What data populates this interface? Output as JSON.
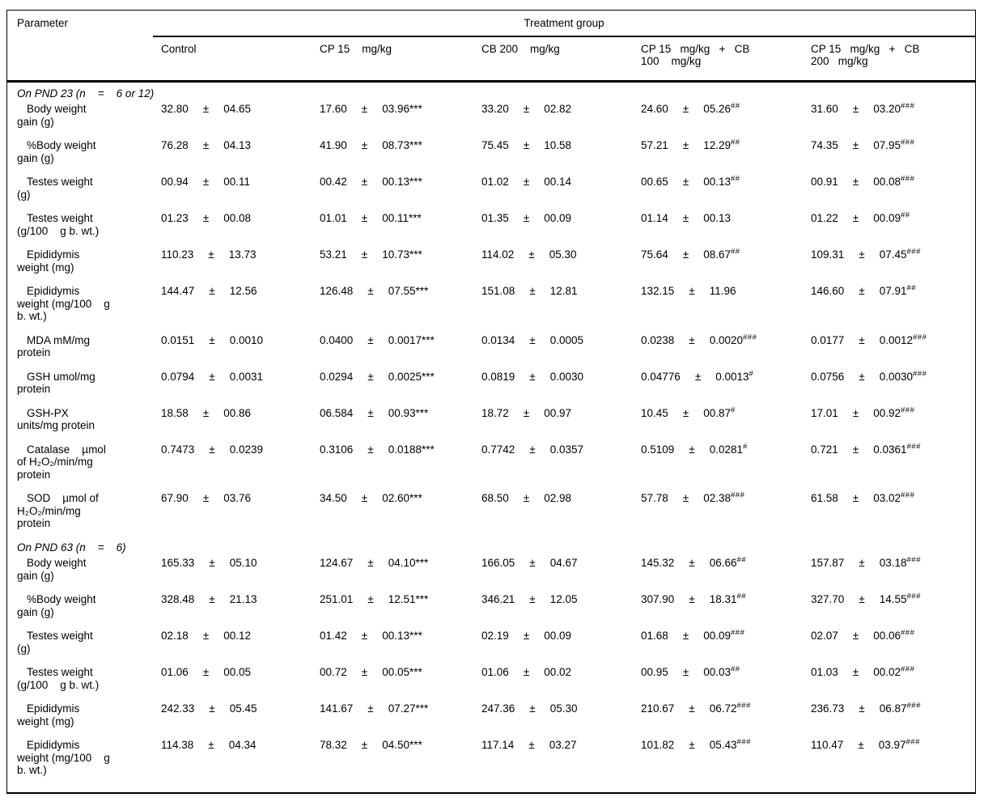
{
  "table": {
    "param_header": "Parameter",
    "group_header": "Treatment group",
    "pm": "±",
    "columns": [
      "Control",
      "CP 15    mg/kg",
      "CB 200    mg/kg",
      "CP 15   mg/kg   +   CB\n100    mg/kg",
      "CP 15   mg/kg   +   CB\n200   mg/kg"
    ],
    "sections": [
      {
        "title": "On PND 23 (n    =    6 or 12)",
        "rows": [
          {
            "label": "Body weight\ngain (g)",
            "cells": [
              [
                "32.80",
                "04.65",
                ""
              ],
              [
                "17.60",
                "03.96",
                "***"
              ],
              [
                "33.20",
                "02.82",
                ""
              ],
              [
                "24.60",
                "05.26",
                "##"
              ],
              [
                "31.60",
                "03.20",
                "###"
              ]
            ]
          },
          {
            "label": "%Body weight\ngain (g)",
            "cells": [
              [
                "76.28",
                "04.13",
                ""
              ],
              [
                "41.90",
                "08.73",
                "***"
              ],
              [
                "75.45",
                "10.58",
                ""
              ],
              [
                "57.21",
                "12.29",
                "##"
              ],
              [
                "74.35",
                "07.95",
                "###"
              ]
            ]
          },
          {
            "label": "Testes weight\n(g)",
            "cells": [
              [
                "00.94",
                "00.11",
                ""
              ],
              [
                "00.42",
                "00.13",
                "***"
              ],
              [
                "01.02",
                "00.14",
                ""
              ],
              [
                "00.65",
                "00.13",
                "##"
              ],
              [
                "00.91",
                "00.08",
                "###"
              ]
            ]
          },
          {
            "label": "Testes weight\n(g/100    g b. wt.)",
            "cells": [
              [
                "01.23",
                "00.08",
                ""
              ],
              [
                "01.01",
                "00.11",
                "***"
              ],
              [
                "01.35",
                "00.09",
                ""
              ],
              [
                "01.14",
                "00.13",
                ""
              ],
              [
                "01.22",
                "00.09",
                "##"
              ]
            ]
          },
          {
            "label": "Epididymis\nweight (mg)",
            "cells": [
              [
                "110.23",
                "13.73",
                ""
              ],
              [
                "53.21",
                "10.73",
                "***"
              ],
              [
                "114.02",
                "05.30",
                ""
              ],
              [
                "75.64",
                "08.67",
                "##"
              ],
              [
                "109.31",
                "07.45",
                "###"
              ]
            ]
          },
          {
            "label": "Epididymis\nweight (mg/100    g\nb. wt.)",
            "cells": [
              [
                "144.47",
                "12.56",
                ""
              ],
              [
                "126.48",
                "07.55",
                "***"
              ],
              [
                "151.08",
                "12.81",
                ""
              ],
              [
                "132.15",
                "11.96",
                ""
              ],
              [
                "146.60",
                "07.91",
                "##"
              ]
            ]
          },
          {
            "label": "MDA mM/mg\nprotein",
            "cells": [
              [
                "0.0151",
                "0.0010",
                ""
              ],
              [
                "0.0400",
                "0.0017",
                "***"
              ],
              [
                "0.0134",
                "0.0005",
                ""
              ],
              [
                "0.0238",
                "0.0020",
                "###"
              ],
              [
                "0.0177",
                "0.0012",
                "###"
              ]
            ]
          },
          {
            "label": "GSH umol/mg\nprotein",
            "cells": [
              [
                "0.0794",
                "0.0031",
                ""
              ],
              [
                "0.0294",
                "0.0025",
                "***"
              ],
              [
                "0.0819",
                "0.0030",
                ""
              ],
              [
                "0.04776",
                "0.0013",
                "#"
              ],
              [
                "0.0756",
                "0.0030",
                "###"
              ]
            ]
          },
          {
            "label": "GSH-PX\nunits/mg protein",
            "cells": [
              [
                "18.58",
                "00.86",
                ""
              ],
              [
                "06.584",
                "00.93",
                "***"
              ],
              [
                "18.72",
                "00.97",
                ""
              ],
              [
                "10.45",
                "00.87",
                "#"
              ],
              [
                "17.01",
                "00.92",
                "###"
              ]
            ]
          },
          {
            "label": "Catalase    µmol\nof H₂O₂/min/mg\nprotein",
            "cells": [
              [
                "0.7473",
                "0.0239",
                ""
              ],
              [
                "0.3106",
                "0.0188",
                "***"
              ],
              [
                "0.7742",
                "0.0357",
                ""
              ],
              [
                "0.5109",
                "0.0281",
                "#"
              ],
              [
                "0.721",
                "0.0361",
                "###"
              ]
            ]
          },
          {
            "label": "SOD    µmol of\nH₂O₂/min/mg\nprotein",
            "cells": [
              [
                "67.90",
                "03.76",
                ""
              ],
              [
                "34.50",
                "02.60",
                "***"
              ],
              [
                "68.50",
                "02.98",
                ""
              ],
              [
                "57.78",
                "02.38",
                "###"
              ],
              [
                "61.58",
                "03.02",
                "###"
              ]
            ]
          }
        ]
      },
      {
        "title": "On PND 63 (n    =    6)",
        "rows": [
          {
            "label": "Body weight\ngain (g)",
            "cells": [
              [
                "165.33",
                "05.10",
                ""
              ],
              [
                "124.67",
                "04.10",
                "***"
              ],
              [
                "166.05",
                "04.67",
                ""
              ],
              [
                "145.32",
                "06.66",
                "##"
              ],
              [
                "157.87",
                "03.18",
                "###"
              ]
            ]
          },
          {
            "label": "%Body weight\ngain (g)",
            "cells": [
              [
                "328.48",
                "21.13",
                ""
              ],
              [
                "251.01",
                "12.51",
                "***"
              ],
              [
                "346.21",
                "12.05",
                ""
              ],
              [
                "307.90",
                "18.31",
                "##"
              ],
              [
                "327.70",
                "14.55",
                "###"
              ]
            ]
          },
          {
            "label": "Testes weight\n(g)",
            "cells": [
              [
                "02.18",
                "00.12",
                ""
              ],
              [
                "01.42",
                "00.13",
                "***"
              ],
              [
                "02.19",
                "00.09",
                ""
              ],
              [
                "01.68",
                "00.09",
                "###"
              ],
              [
                "02.07",
                "00.06",
                "###"
              ]
            ]
          },
          {
            "label": "Testes weight\n(g/100    g b. wt.)",
            "cells": [
              [
                "01.06",
                "00.05",
                ""
              ],
              [
                "00.72",
                "00.05",
                "***"
              ],
              [
                "01.06",
                "00.02",
                ""
              ],
              [
                "00.95",
                "00.03",
                "##"
              ],
              [
                "01.03",
                "00.02",
                "###"
              ]
            ]
          },
          {
            "label": "Epididymis\nweight (mg)",
            "cells": [
              [
                "242.33",
                "05.45",
                ""
              ],
              [
                "141.67",
                "07.27",
                "***"
              ],
              [
                "247.36",
                "05.30",
                ""
              ],
              [
                "210.67",
                "06.72",
                "###"
              ],
              [
                "236.73",
                "06.87",
                "###"
              ]
            ]
          },
          {
            "label": "Epididymis\nweight (mg/100    g\nb. wt.)",
            "cells": [
              [
                "114.38",
                "04.34",
                ""
              ],
              [
                "78.32",
                "04.50",
                "***"
              ],
              [
                "117.14",
                "03.27",
                ""
              ],
              [
                "101.82",
                "05.43",
                "###"
              ],
              [
                "110.47",
                "03.97",
                "###"
              ]
            ]
          }
        ]
      }
    ]
  }
}
